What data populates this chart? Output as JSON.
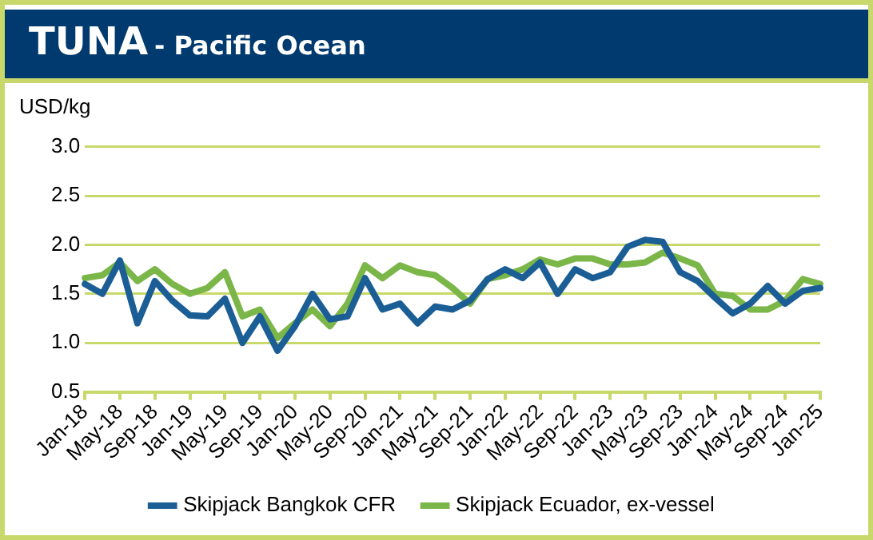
{
  "chart_data": {
    "type": "line",
    "title": "TUNA",
    "subtitle": "- Pacific Ocean",
    "ylabel": "USD/kg",
    "categories": [
      "Jan-18",
      null,
      "May-18",
      null,
      "Sep-18",
      null,
      "Jan-19",
      null,
      "May-19",
      null,
      "Sep-19",
      null,
      "Jan-20",
      null,
      "May-20",
      null,
      "Sep-20",
      null,
      "Jan-21",
      null,
      "May-21",
      null,
      "Sep-21",
      null,
      "Jan-22",
      null,
      "May-22",
      null,
      "Sep-22",
      null,
      "Jan-23",
      null,
      "May-23",
      null,
      "Sep-23",
      null,
      "Jan-24",
      null,
      "May-24",
      null,
      "Sep-24",
      null,
      "Jan-25"
    ],
    "series": [
      {
        "name": "Skipjack Bangkok CFR",
        "color": "#1b5e96",
        "values": [
          1.6,
          1.5,
          1.84,
          1.2,
          1.63,
          1.43,
          1.28,
          1.27,
          1.45,
          1.0,
          1.27,
          0.92,
          1.17,
          1.5,
          1.24,
          1.27,
          1.66,
          1.34,
          1.4,
          1.2,
          1.37,
          1.34,
          1.43,
          1.65,
          1.75,
          1.66,
          1.82,
          1.5,
          1.75,
          1.66,
          1.72,
          1.98,
          2.05,
          2.03,
          1.72,
          1.63,
          1.46,
          1.3,
          1.4,
          1.58,
          1.4,
          1.53,
          1.56
        ]
      },
      {
        "name": "Skipjack Ecuador, ex-vessel",
        "color": "#7ab648",
        "values": [
          1.66,
          1.69,
          1.82,
          1.63,
          1.75,
          1.6,
          1.5,
          1.56,
          1.72,
          1.27,
          1.34,
          1.05,
          1.2,
          1.34,
          1.17,
          1.4,
          1.79,
          1.66,
          1.79,
          1.72,
          1.69,
          1.56,
          1.4,
          1.65,
          1.69,
          1.75,
          1.85,
          1.8,
          1.86,
          1.86,
          1.8,
          1.8,
          1.82,
          1.92,
          1.86,
          1.79,
          1.5,
          1.48,
          1.34,
          1.34,
          1.43,
          1.65,
          1.6
        ]
      }
    ],
    "ylim": [
      0.5,
      3
    ],
    "yticks": [
      {
        "value": 0.5,
        "label": "0.5"
      },
      {
        "value": 1,
        "label": "1.0"
      },
      {
        "value": 1.5,
        "label": "1.5"
      },
      {
        "value": 2,
        "label": "2.0"
      },
      {
        "value": 2.5,
        "label": "2.5"
      },
      {
        "value": 3,
        "label": "3.0"
      }
    ],
    "grid": "y",
    "legend": "bottom",
    "marker": "none",
    "line_style": "solid"
  }
}
